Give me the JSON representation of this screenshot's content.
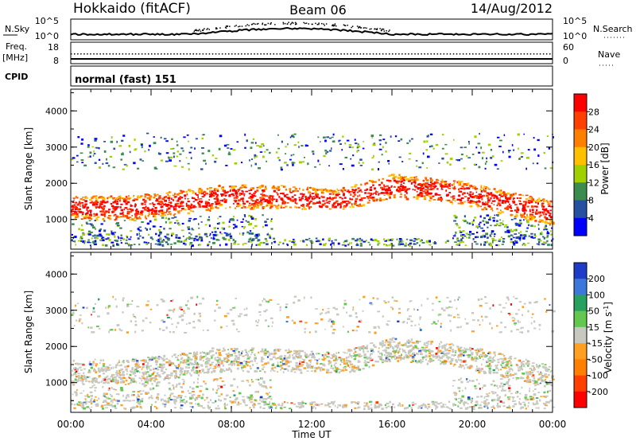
{
  "header": {
    "station": "Hokkaido (fitACF)",
    "beam": "Beam 06",
    "date": "14/Aug/2012"
  },
  "status_panels": {
    "nsky_label": "N.Sky",
    "nsky_ticks": [
      "10^5",
      "10^0"
    ],
    "nsearch_label": "N.Search",
    "nsearch_ticks": [
      "10^5",
      "10^0"
    ],
    "freq_label_1": "Freq.",
    "freq_label_2": "[MHz]",
    "freq_ticks": [
      "18",
      "8"
    ],
    "nave_label": "Nave",
    "nave_ticks": [
      "60",
      "0"
    ],
    "cpid_label": "CPID",
    "cpid_value": "normal (fast) 151"
  },
  "chart_data": [
    {
      "type": "heatmap",
      "ylabel": "Slant Range [km]",
      "ylim": [
        180,
        4600
      ],
      "yticks": [
        "1000",
        "2000",
        "3000",
        "4000"
      ],
      "xlim": [
        "00:00",
        "24:00"
      ],
      "colorbar": {
        "label": "Power [dB]",
        "ticks": [
          "28",
          "24",
          "20",
          "16",
          "12",
          "8",
          "4"
        ],
        "colors": [
          "#ff0000",
          "#ff4000",
          "#ff8000",
          "#ffc000",
          "#a0d000",
          "#3c8c50",
          "#2850a0",
          "#0000ff"
        ]
      }
    },
    {
      "type": "heatmap",
      "ylabel": "Slant Range [km]",
      "ylim": [
        180,
        4600
      ],
      "yticks": [
        "1000",
        "2000",
        "3000",
        "4000"
      ],
      "xlim": [
        "00:00",
        "24:00"
      ],
      "colorbar": {
        "label_main": "Velocity [m s",
        "label_sup": "-1",
        "label_end": "]",
        "ticks": [
          "200",
          "100",
          "50",
          "15",
          "-15",
          "-50",
          "-100",
          "-200"
        ],
        "colors": [
          "#1e3cc8",
          "#3c78dc",
          "#28a060",
          "#64c850",
          "#c8c8c0",
          "#ffa020",
          "#ff8000",
          "#ff4000",
          "#ff0000"
        ]
      }
    }
  ],
  "xaxis": {
    "ticks": [
      "00:00",
      "04:00",
      "08:00",
      "12:00",
      "16:00",
      "20:00",
      "00:00"
    ],
    "label": "Time UT"
  }
}
